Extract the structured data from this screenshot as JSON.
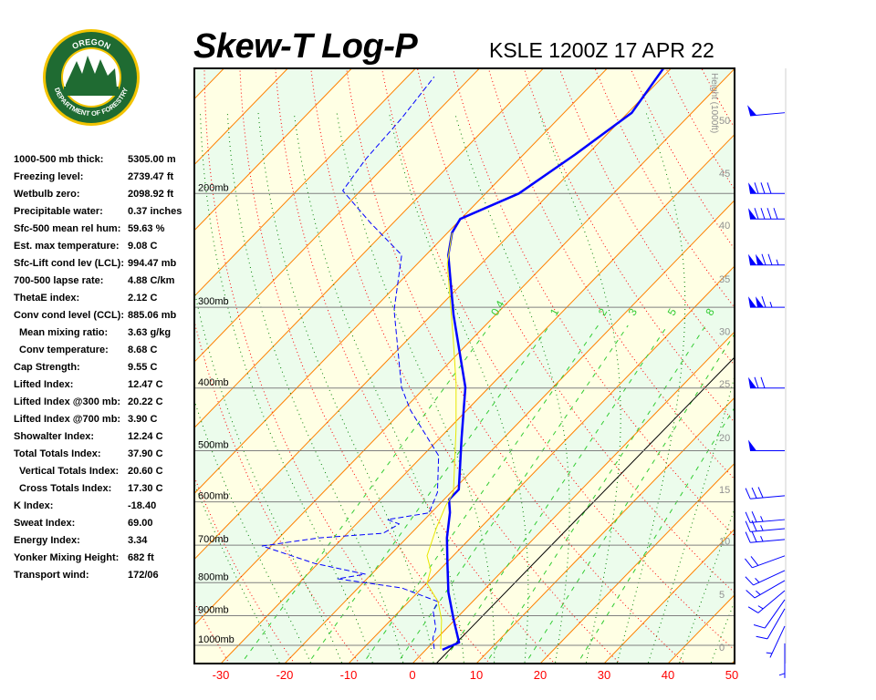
{
  "logo": {
    "top_text": "OREGON",
    "bottom_text": "DEPARTMENT OF FORESTRY"
  },
  "header": {
    "title": "Skew-T Log-P",
    "station": "KSLE 1200Z 17 APR 22"
  },
  "stats": [
    {
      "label": "1000-500 mb thick:",
      "value": "5305.00 m"
    },
    {
      "label": "Freezing level:",
      "value": "2739.47 ft"
    },
    {
      "label": "Wetbulb zero:",
      "value": "2098.92 ft"
    },
    {
      "label": "Precipitable water:",
      "value": "0.37 inches"
    },
    {
      "label": "Sfc-500 mean rel hum:",
      "value": "59.63 %"
    },
    {
      "label": "Est. max temperature:",
      "value": "9.08 C"
    },
    {
      "label": "Sfc-Lift cond lev (LCL):",
      "value": "994.47 mb"
    },
    {
      "label": "700-500 lapse rate:",
      "value": "4.88 C/km"
    },
    {
      "label": "ThetaE index:",
      "value": "2.12 C"
    },
    {
      "label": "Conv cond level (CCL):",
      "value": "885.06 mb"
    },
    {
      "label": "Mean mixing ratio:",
      "value": "3.63 g/kg",
      "indent": true
    },
    {
      "label": "Conv temperature:",
      "value": "8.68 C",
      "indent": true
    },
    {
      "label": "Cap Strength:",
      "value": "9.55 C"
    },
    {
      "label": "Lifted Index:",
      "value": "12.47 C"
    },
    {
      "label": "Lifted Index @300 mb:",
      "value": "20.22 C"
    },
    {
      "label": "Lifted Index @700 mb:",
      "value": "3.90 C"
    },
    {
      "label": "Showalter Index:",
      "value": "12.24 C"
    },
    {
      "label": "Total Totals Index:",
      "value": "37.90 C"
    },
    {
      "label": "Vertical Totals Index:",
      "value": "20.60 C",
      "indent": true
    },
    {
      "label": "Cross Totals Index:",
      "value": "17.30 C",
      "indent": true
    },
    {
      "label": "K Index:",
      "value": "-18.40"
    },
    {
      "label": "Sweat Index:",
      "value": "69.00"
    },
    {
      "label": "Energy Index:",
      "value": "3.34"
    },
    {
      "label": "Yonker Mixing Height:",
      "value": "682 ft"
    },
    {
      "label": "Transport wind:",
      "value": "172/06"
    }
  ],
  "chart_data": {
    "type": "skew-t",
    "x_axis": {
      "label": "",
      "unit": "C",
      "range": [
        -34,
        51
      ],
      "ticks": [
        -30,
        -20,
        -10,
        0,
        10,
        20,
        30,
        40,
        50
      ]
    },
    "y_axis": {
      "scale": "log-pressure",
      "unit": "mb",
      "range": [
        1067,
        128
      ],
      "ticks": [
        {
          "p": 1000,
          "label": "1000mb"
        },
        {
          "p": 900,
          "label": "900mb"
        },
        {
          "p": 800,
          "label": "800mb"
        },
        {
          "p": 700,
          "label": "700mb"
        },
        {
          "p": 600,
          "label": "600mb"
        },
        {
          "p": 500,
          "label": "500mb"
        },
        {
          "p": 400,
          "label": "400mb"
        },
        {
          "p": 300,
          "label": "300mb"
        },
        {
          "p": 200,
          "label": "200mb"
        }
      ]
    },
    "height_axis": {
      "label": "Height (1000ft)",
      "ticks": [
        {
          "kft": "0",
          "p": 1007
        },
        {
          "kft": "5",
          "p": 834
        },
        {
          "kft": "10",
          "p": 690
        },
        {
          "kft": "15",
          "p": 574
        },
        {
          "kft": "20",
          "p": 477
        },
        {
          "kft": "25",
          "p": 394
        },
        {
          "kft": "30",
          "p": 327
        },
        {
          "kft": "35",
          "p": 271
        },
        {
          "kft": "40",
          "p": 224
        },
        {
          "kft": "45",
          "p": 186
        },
        {
          "kft": "50",
          "p": 154
        }
      ]
    },
    "mixing_ratio_labels": [
      "0.4",
      "1",
      "2",
      "3",
      "5",
      "8"
    ],
    "mixing_ratios": [
      0.4,
      1,
      2,
      3,
      5,
      8,
      12,
      20
    ],
    "series": [
      {
        "id": "temperature",
        "color": "#0000ff",
        "style": "solid-thick",
        "points": [
          [
            1016,
            2.6
          ],
          [
            990,
            4.1
          ],
          [
            913,
            -0.2
          ],
          [
            828,
            -5.2
          ],
          [
            751,
            -9.5
          ],
          [
            682,
            -13.7
          ],
          [
            623,
            -17.1
          ],
          [
            595,
            -19.2
          ],
          [
            574,
            -19.2
          ],
          [
            479,
            -26.5
          ],
          [
            399,
            -33.7
          ],
          [
            308,
            -46.6
          ],
          [
            249,
            -56.5
          ],
          [
            230,
            -59.3
          ],
          [
            219,
            -60.1
          ],
          [
            200,
            -54.8
          ],
          [
            174,
            -51.9
          ],
          [
            150,
            -49.4
          ],
          [
            128,
            -51.2
          ]
        ]
      },
      {
        "id": "dewpoint",
        "color": "#0000ff",
        "style": "dashed",
        "points": [
          [
            1013,
            1.2
          ],
          [
            974,
            -0.7
          ],
          [
            943,
            -1.6
          ],
          [
            884,
            -4.8
          ],
          [
            856,
            -5.4
          ],
          [
            815,
            -13.2
          ],
          [
            789,
            -24.6
          ],
          [
            776,
            -21
          ],
          [
            747,
            -30.5
          ],
          [
            702,
            -41.4
          ],
          [
            682,
            -33.7
          ],
          [
            671,
            -24.4
          ],
          [
            649,
            -23.3
          ],
          [
            639,
            -25.8
          ],
          [
            624,
            -20.3
          ],
          [
            580,
            -22.1
          ],
          [
            509,
            -27.5
          ],
          [
            433,
            -38.8
          ],
          [
            399,
            -43.7
          ],
          [
            303,
            -56.6
          ],
          [
            249,
            -63.8
          ],
          [
            222,
            -73.6
          ],
          [
            198,
            -82.8
          ],
          [
            177,
            -84
          ],
          [
            153,
            -84.6
          ],
          [
            132,
            -85.8
          ]
        ]
      },
      {
        "id": "wetbulb",
        "color": "#e8e800",
        "style": "solid-thin",
        "points": [
          [
            1013,
            2.2
          ],
          [
            913,
            -2.1
          ],
          [
            856,
            -5.4
          ],
          [
            802,
            -9.9
          ],
          [
            764,
            -11.4
          ],
          [
            727,
            -14.1
          ],
          [
            660,
            -16.8
          ],
          [
            608,
            -18.8
          ],
          [
            580,
            -19.6
          ],
          [
            462,
            -28.9
          ],
          [
            393,
            -35.8
          ],
          [
            334,
            -43.2
          ],
          [
            257,
            -55.3
          ],
          [
            230,
            -59.3
          ]
        ]
      }
    ],
    "wind_barbs": [
      {
        "p": 150,
        "dir": 265,
        "kt": 50
      },
      {
        "p": 200,
        "dir": 270,
        "kt": 80
      },
      {
        "p": 219,
        "dir": 270,
        "kt": 90
      },
      {
        "p": 258,
        "dir": 270,
        "kt": 125
      },
      {
        "p": 300,
        "dir": 270,
        "kt": 115
      },
      {
        "p": 400,
        "dir": 270,
        "kt": 70
      },
      {
        "p": 500,
        "dir": 270,
        "kt": 50
      },
      {
        "p": 587,
        "dir": 265,
        "kt": 30
      },
      {
        "p": 639,
        "dir": 265,
        "kt": 25
      },
      {
        "p": 660,
        "dir": 265,
        "kt": 25
      },
      {
        "p": 686,
        "dir": 265,
        "kt": 25
      },
      {
        "p": 727,
        "dir": 250,
        "kt": 20
      },
      {
        "p": 766,
        "dir": 245,
        "kt": 15
      },
      {
        "p": 794,
        "dir": 240,
        "kt": 15
      },
      {
        "p": 823,
        "dir": 230,
        "kt": 15
      },
      {
        "p": 850,
        "dir": 215,
        "kt": 10
      },
      {
        "p": 878,
        "dir": 210,
        "kt": 10
      },
      {
        "p": 934,
        "dir": 205,
        "kt": 5
      },
      {
        "p": 993,
        "dir": 180,
        "kt": 5
      }
    ],
    "colors": {
      "isotherm": "#ff8000",
      "dry_adiabat": "#ff0000",
      "moist_adiabat": "#008000",
      "mixing_ratio": "#33cc33",
      "pressure_line": "#808080",
      "band_a": "#ffffe4",
      "band_b": "#ecfcec",
      "temp_label": "#ff0000",
      "height_label": "#909090"
    }
  }
}
